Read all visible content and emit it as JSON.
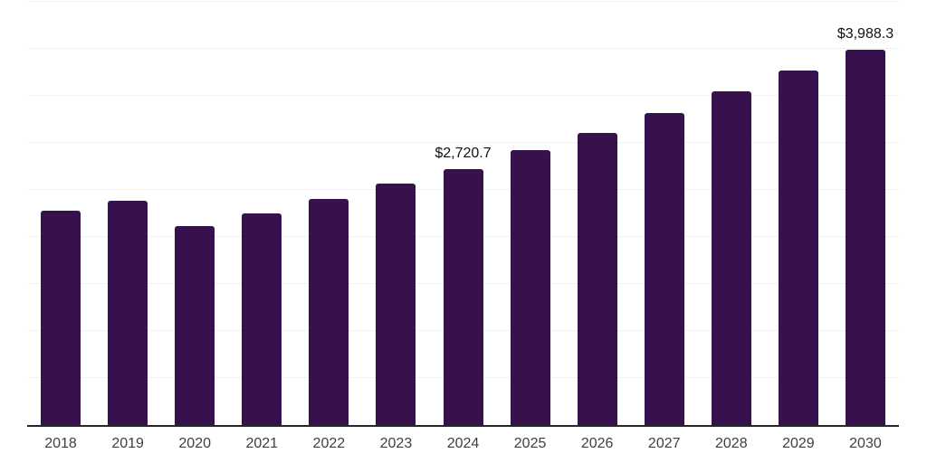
{
  "chart_data": {
    "type": "bar",
    "title": "",
    "xlabel": "",
    "ylabel": "",
    "categories": [
      "2018",
      "2019",
      "2020",
      "2021",
      "2022",
      "2023",
      "2024",
      "2025",
      "2026",
      "2027",
      "2028",
      "2029",
      "2030"
    ],
    "values": [
      2280,
      2380,
      2120,
      2250,
      2400,
      2570,
      2720.7,
      2920,
      3110,
      3320,
      3550,
      3770,
      3988.3
    ],
    "data_labels": {
      "2024": "$2,720.7",
      "2030": "$3,988.3"
    },
    "ylim": [
      0,
      4500
    ],
    "gridline_step": 500,
    "grid": true,
    "legend": false,
    "y_axis_labels_visible": false,
    "colors": {
      "bar": "#36114d",
      "gridline": "#f1f1f1",
      "axis_line": "#262626",
      "tick_label": "#3f3f3f",
      "value_label": "#111111",
      "background": "#ffffff"
    }
  }
}
